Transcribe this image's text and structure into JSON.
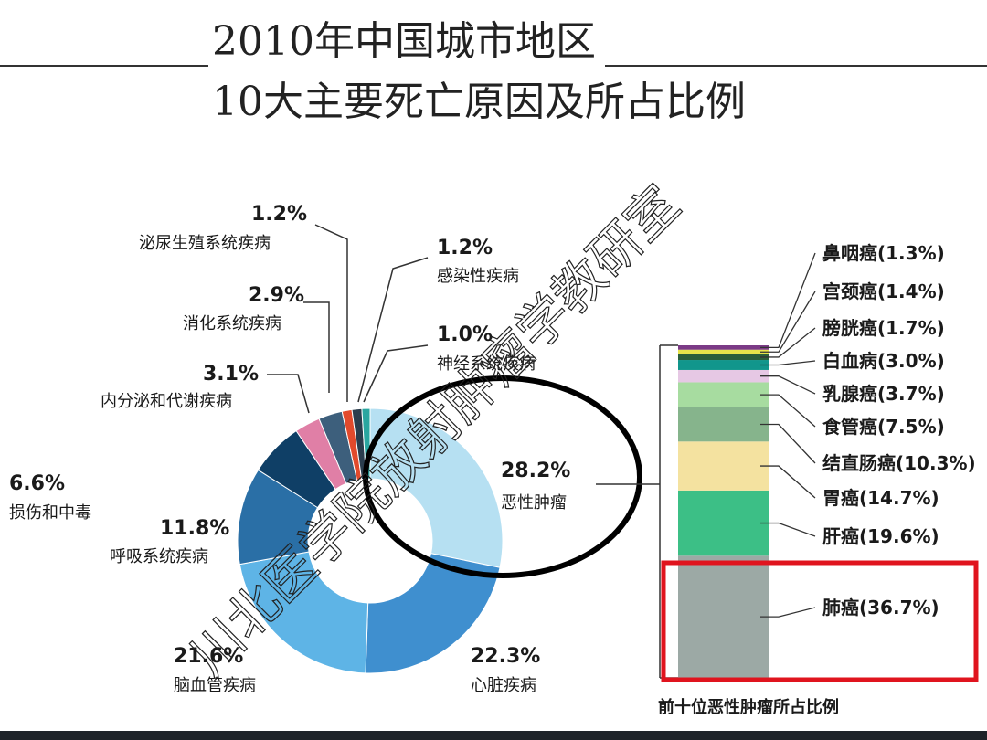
{
  "title": {
    "line1": "2010年中国城市地区",
    "line2": "10大主要死亡原因及所占比例"
  },
  "watermark": "川北医学院放射肿瘤学教研室",
  "chart_data": [
    {
      "type": "pie",
      "variant": "donut",
      "slices": [
        {
          "label": "恶性肿瘤",
          "value": 28.2,
          "pct": "28.2%",
          "color": "#b6e0f2"
        },
        {
          "label": "心脏疾病",
          "value": 22.3,
          "pct": "22.3%",
          "color": "#3f8fcf"
        },
        {
          "label": "脑血管疾病",
          "value": 21.6,
          "pct": "21.6%",
          "color": "#5eb4e6"
        },
        {
          "label": "呼吸系统疾病",
          "value": 11.8,
          "pct": "11.8%",
          "color": "#2a6fa6"
        },
        {
          "label": "损伤和中毒",
          "value": 6.6,
          "pct": "6.6%",
          "color": "#0f3f66"
        },
        {
          "label": "内分泌和代谢疾病",
          "value": 3.1,
          "pct": "3.1%",
          "color": "#e07fa6"
        },
        {
          "label": "消化系统疾病",
          "value": 2.9,
          "pct": "2.9%",
          "color": "#3d5f7c"
        },
        {
          "label": "泌尿生殖系统疾病",
          "value": 1.2,
          "pct": "1.2%",
          "color": "#e24a2c"
        },
        {
          "label": "感染性疾病",
          "value": 1.2,
          "pct": "1.2%",
          "color": "#2a3d4d"
        },
        {
          "label": "神经系统疾病",
          "value": 1.0,
          "pct": "1.0%",
          "color": "#2aa6a0"
        }
      ]
    },
    {
      "type": "bar",
      "variant": "stacked-100",
      "caption": "前十位恶性肿瘤所占比例",
      "segments": [
        {
          "label": "肺癌(36.7%)",
          "value": 36.7,
          "color": "#9ca9a5"
        },
        {
          "label": "肝癌(19.6%)",
          "value": 19.6,
          "color": "#3cbf86"
        },
        {
          "label": "胃癌(14.7%)",
          "value": 14.7,
          "color": "#f4e2a0"
        },
        {
          "label": "结直肠癌(10.3%)",
          "value": 10.3,
          "color": "#86b48c"
        },
        {
          "label": "食管癌(7.5%)",
          "value": 7.5,
          "color": "#a7dca0"
        },
        {
          "label": "乳腺癌(3.7%)",
          "value": 3.7,
          "color": "#e6c8e4"
        },
        {
          "label": "白血病(3.0%)",
          "value": 3.0,
          "color": "#11968c"
        },
        {
          "label": "膀胱癌(1.7%)",
          "value": 1.7,
          "color": "#2b5f3a"
        },
        {
          "label": "宫颈癌(1.4%)",
          "value": 1.4,
          "color": "#e8e44a"
        },
        {
          "label": "鼻咽癌(1.3%)",
          "value": 1.3,
          "color": "#7b3a86"
        }
      ]
    }
  ]
}
